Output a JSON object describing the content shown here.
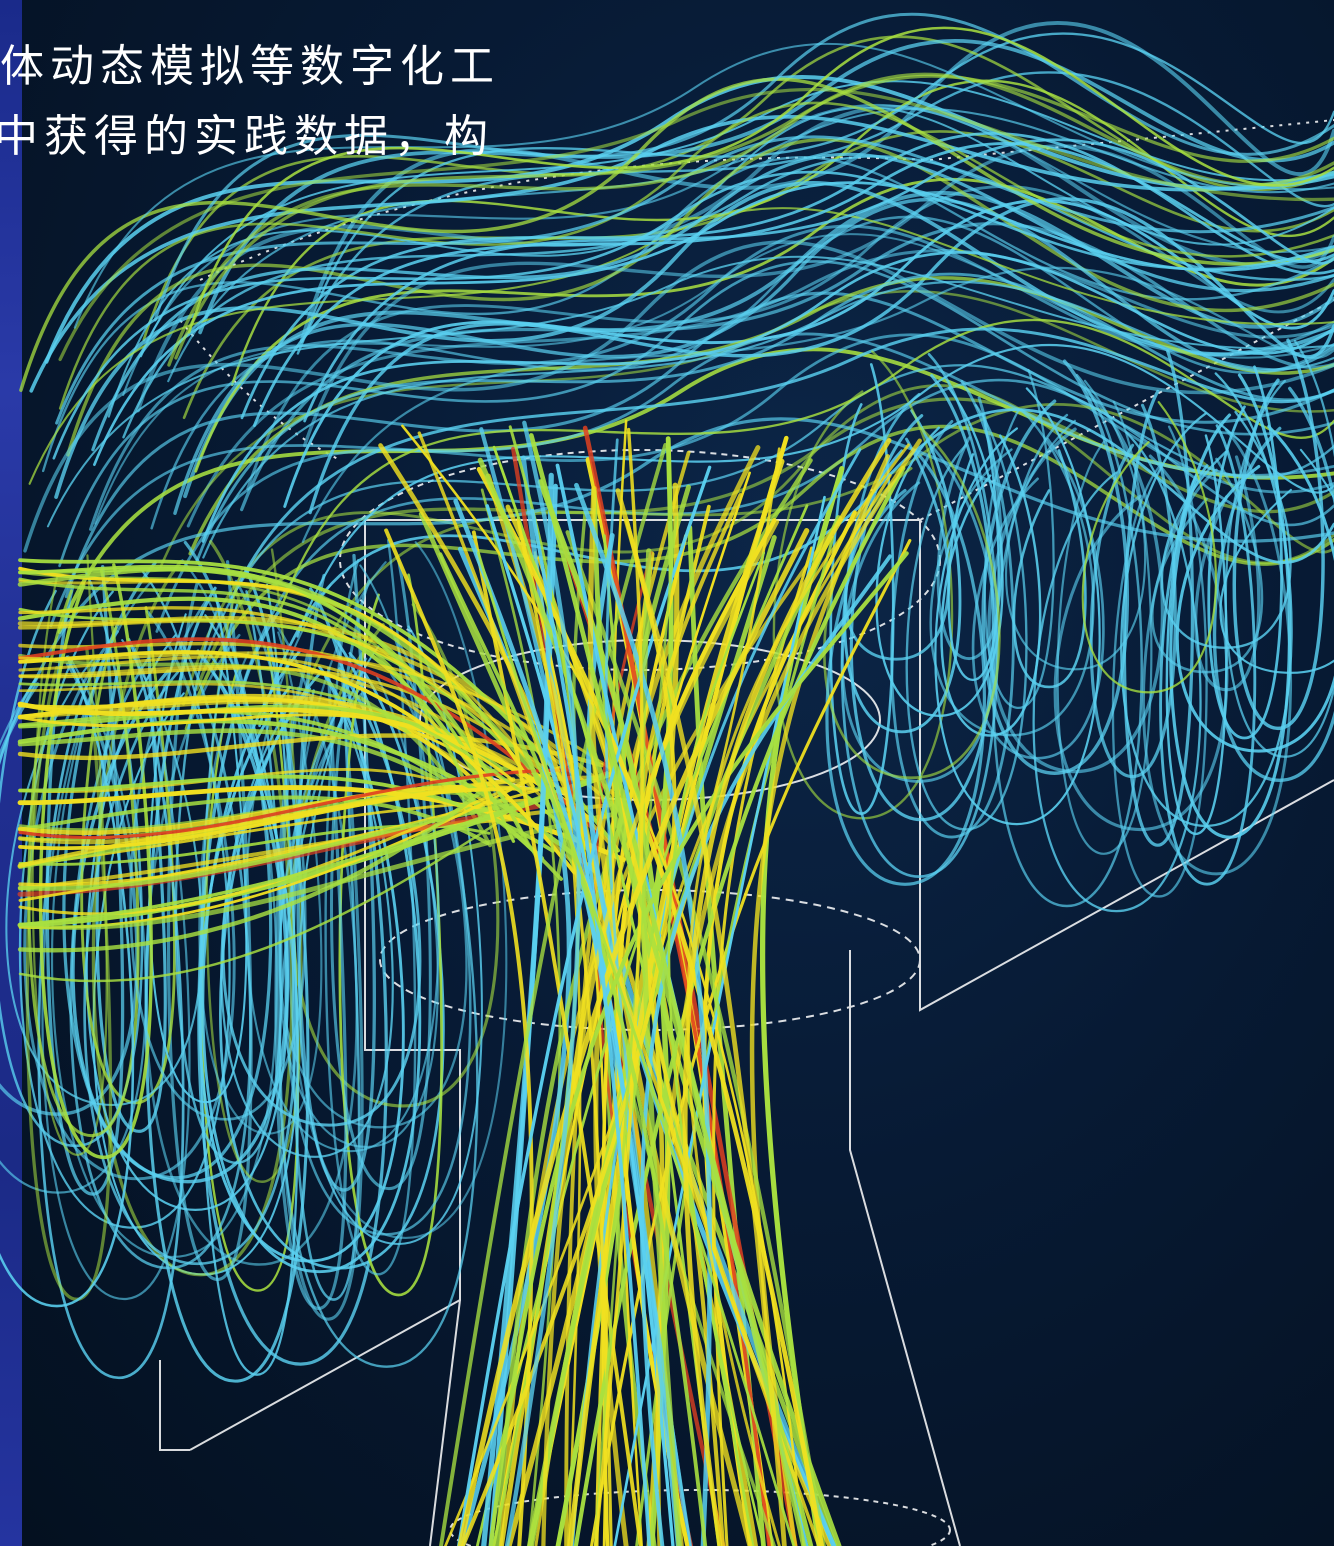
{
  "caption": {
    "line1": "体动态模拟等数字化工",
    "line2": "中获得的实践数据，构"
  },
  "colors": {
    "background": "#061428",
    "strip": "#1f2e95",
    "streamline_cool": "#5ad0f0",
    "streamline_mid": "#a8e040",
    "streamline_warm": "#f0e020",
    "streamline_hot": "#e04020",
    "wireframe": "#ffffff"
  }
}
